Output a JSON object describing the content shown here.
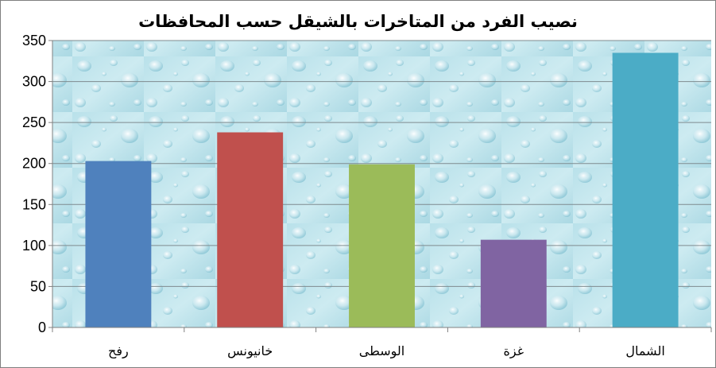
{
  "chart_data": {
    "type": "bar",
    "title": "نصيب الفرد من المتاخرات بالشيقل حسب المحافظات",
    "xlabel": "",
    "ylabel": "",
    "categories": [
      "رفح",
      "خانيونس",
      "الوسطى",
      "غزة",
      "الشمال"
    ],
    "values": [
      203,
      238,
      199,
      107,
      335
    ],
    "colors": [
      "#4f81bd",
      "#c0504d",
      "#9bbb59",
      "#8064a2",
      "#4bacc6"
    ],
    "ylim": [
      0,
      350
    ],
    "yticks": [
      0,
      50,
      100,
      150,
      200,
      250,
      300,
      350
    ],
    "grid": true,
    "legend": "none",
    "plot_background": "water-droplets"
  }
}
